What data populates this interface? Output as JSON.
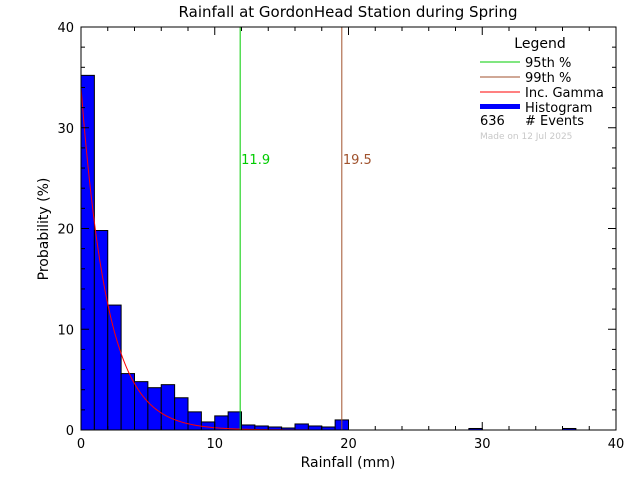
{
  "chart_data": {
    "type": "bar",
    "title": "Rainfall at GordonHead Station during Spring",
    "xlabel": "Rainfall (mm)",
    "ylabel": "Probability (%)",
    "xlim": [
      0,
      40
    ],
    "ylim": [
      0,
      40
    ],
    "x_ticks": [
      "0",
      "10",
      "20",
      "30",
      "40"
    ],
    "y_ticks": [
      "0",
      "10",
      "20",
      "30",
      "40"
    ],
    "bin_width": 1,
    "histogram": [
      {
        "x": 0,
        "value": 35.2
      },
      {
        "x": 1,
        "value": 19.8
      },
      {
        "x": 2,
        "value": 12.4
      },
      {
        "x": 3,
        "value": 5.6
      },
      {
        "x": 4,
        "value": 4.8
      },
      {
        "x": 5,
        "value": 4.2
      },
      {
        "x": 6,
        "value": 4.5
      },
      {
        "x": 7,
        "value": 3.2
      },
      {
        "x": 8,
        "value": 1.8
      },
      {
        "x": 9,
        "value": 0.8
      },
      {
        "x": 10,
        "value": 1.4
      },
      {
        "x": 11,
        "value": 1.8
      },
      {
        "x": 12,
        "value": 0.5
      },
      {
        "x": 13,
        "value": 0.4
      },
      {
        "x": 14,
        "value": 0.3
      },
      {
        "x": 15,
        "value": 0.2
      },
      {
        "x": 16,
        "value": 0.6
      },
      {
        "x": 17,
        "value": 0.4
      },
      {
        "x": 18,
        "value": 0.3
      },
      {
        "x": 19,
        "value": 1.0
      },
      {
        "x": 29,
        "value": 0.15
      },
      {
        "x": 36,
        "value": 0.15
      }
    ],
    "gamma_curve": {
      "amplitude": 34,
      "decay": 0.5
    },
    "percentiles": [
      {
        "name": "95th %",
        "value": 11.9,
        "label": "11.9",
        "color": "#00cc00"
      },
      {
        "name": "99th %",
        "value": 19.5,
        "label": "19.5",
        "color": "#a0522d"
      }
    ],
    "legend": {
      "title": "Legend",
      "placement": "top-right",
      "entries": [
        {
          "label": "95th %",
          "color": "#00cc00",
          "kind": "line"
        },
        {
          "label": "99th %",
          "color": "#a0522d",
          "kind": "line"
        },
        {
          "label": "Inc. Gamma",
          "color": "#ff0000",
          "kind": "line"
        },
        {
          "label": "Histogram",
          "color": "#0000ff",
          "kind": "bar"
        }
      ],
      "events_count": "636",
      "events_label": "# Events",
      "made_on": "Made on 12 Jul 2025"
    },
    "colors": {
      "histogram": "#0000ff",
      "gamma": "#ff0000",
      "axis": "#000000",
      "made_on": "#c8c8c8"
    }
  }
}
